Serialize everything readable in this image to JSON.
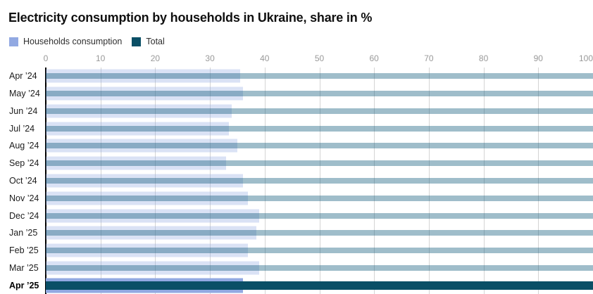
{
  "title": "Electricity consumption by households in Ukraine, share in %",
  "legend": {
    "items": [
      {
        "label": "Households consumption",
        "color": "#92a9e2"
      },
      {
        "label": "Total",
        "color": "#0a4f66"
      }
    ]
  },
  "colors": {
    "households_full": "#92a9e2",
    "households_faded": "rgba(146, 169, 226, 0.34)",
    "total_full": "#0a4f66",
    "total_faded": "rgba(15, 90, 122, 0.40)",
    "gridline": "#d4d4d4",
    "axis_line": "#000000",
    "tick_label": "#999999"
  },
  "chart_data": {
    "type": "bar",
    "orientation": "horizontal",
    "title": "Electricity consumption by households in Ukraine, share in %",
    "unit": "%",
    "categories": [
      "Apr ’24",
      "May ’24",
      "Jun ’24",
      "Jul ’24",
      "Aug ’24",
      "Sep ’24",
      "Oct ’24",
      "Nov ’24",
      "Dec ’24",
      "Jan ’25",
      "Feb ’25",
      "Mar ’25",
      "Apr ’25"
    ],
    "series": [
      {
        "name": "Households consumption",
        "values": [
          35.5,
          36,
          34,
          33.5,
          35,
          33,
          36,
          37,
          39,
          38.5,
          37,
          39,
          36
        ]
      },
      {
        "name": "Total",
        "values": [
          100,
          100,
          100,
          100,
          100,
          100,
          100,
          100,
          100,
          100,
          100,
          100,
          100
        ]
      }
    ],
    "xlim": [
      0,
      100
    ],
    "xticks": [
      0,
      10,
      20,
      30,
      40,
      50,
      60,
      70,
      80,
      90,
      100
    ],
    "highlighted_category": "Apr ’25",
    "grid": "vertical",
    "legend_position": "top-left"
  }
}
